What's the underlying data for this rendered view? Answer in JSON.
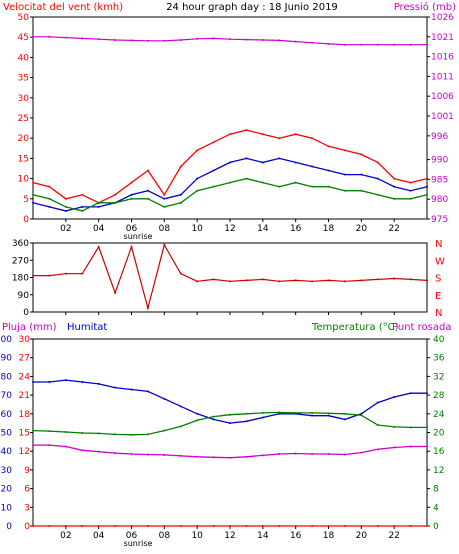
{
  "title": "24 hour graph day : 18 Junio 2019",
  "panels": {
    "wind": {
      "left_label": "Velocitat del vent (kmh)",
      "right_label": "Pressió (mb)",
      "colors": {
        "speed": "#ff0000",
        "avg": "#0000cc",
        "gust": "#008000",
        "pressure": "#cc00cc"
      }
    },
    "dir": {
      "compass": [
        "N",
        "W",
        "S",
        "E",
        "N"
      ],
      "colors": {
        "dir": "#cc0000"
      }
    },
    "temp": {
      "rain_label": "Pluja (mm)",
      "hum_label": "Humitat",
      "temp_label": "Temperatura (°C)",
      "dew_label": "Punt rosada",
      "colors": {
        "rain": "#ff0000",
        "hum": "#0000cc",
        "temp": "#008000",
        "dew": "#cc00cc"
      }
    }
  },
  "x_ticks": [
    "02",
    "04",
    "06",
    "08",
    "10",
    "12",
    "14",
    "16",
    "18",
    "20",
    "22"
  ],
  "sunrise_label": "sunrise",
  "chart_data": [
    {
      "type": "line",
      "title": "24 hour graph day : 18 Junio 2019",
      "ylabel": "Velocitat del vent (kmh)",
      "y2label": "Pressió (mb)",
      "ylim": [
        0,
        50
      ],
      "y2lim": [
        975,
        1026
      ],
      "yticks": [
        0,
        5,
        10,
        15,
        20,
        25,
        30,
        35,
        40,
        45,
        50
      ],
      "y2ticks": [
        975,
        980,
        985,
        990,
        996,
        1001,
        1006,
        1011,
        1016,
        1021,
        1026
      ],
      "x": [
        0,
        1,
        2,
        3,
        4,
        5,
        6,
        7,
        8,
        9,
        10,
        11,
        12,
        13,
        14,
        15,
        16,
        17,
        18,
        19,
        20,
        21,
        22,
        23,
        24
      ],
      "series": [
        {
          "values": [
            9,
            8,
            5,
            6,
            4,
            6,
            9,
            12,
            6,
            13,
            17,
            19,
            21,
            22,
            21,
            20,
            21,
            20,
            18,
            17,
            16,
            14,
            10,
            9,
            10
          ]
        },
        {
          "values": [
            4,
            3,
            2,
            3,
            3,
            4,
            6,
            7,
            5,
            6,
            10,
            12,
            14,
            15,
            14,
            15,
            14,
            13,
            12,
            11,
            11,
            10,
            8,
            7,
            8
          ]
        },
        {
          "values": [
            6,
            5,
            3,
            2,
            4,
            4,
            5,
            5,
            3,
            4,
            7,
            8,
            9,
            10,
            9,
            8,
            9,
            8,
            8,
            7,
            7,
            6,
            5,
            5,
            6
          ]
        },
        {
          "values": [
            1021,
            1021,
            1020.8,
            1020.6,
            1020.4,
            1020.2,
            1020.1,
            1020,
            1020,
            1020.2,
            1020.5,
            1020.6,
            1020.4,
            1020.3,
            1020.2,
            1020.1,
            1019.8,
            1019.5,
            1019.2,
            1019,
            1019,
            1019,
            1019,
            1019,
            1019
          ]
        }
      ]
    },
    {
      "type": "line",
      "ylim": [
        0,
        360
      ],
      "yticks": [
        0,
        90,
        180,
        270,
        360
      ],
      "x": [
        0,
        1,
        2,
        3,
        4,
        5,
        6,
        7,
        8,
        9,
        10,
        11,
        12,
        13,
        14,
        15,
        16,
        17,
        18,
        19,
        20,
        21,
        22,
        23,
        24
      ],
      "series": [
        {
          "values": [
            190,
            190,
            200,
            200,
            340,
            100,
            340,
            20,
            350,
            200,
            160,
            170,
            160,
            165,
            170,
            160,
            165,
            160,
            165,
            160,
            165,
            170,
            175,
            170,
            165
          ]
        }
      ]
    },
    {
      "type": "line",
      "ylabel": "Humitat",
      "y2label": "Temperatura (°C)",
      "ylim": [
        0,
        100
      ],
      "y2lim": [
        0,
        40
      ],
      "yticks": [
        0,
        10,
        20,
        30,
        40,
        50,
        60,
        70,
        80,
        90,
        100
      ],
      "y2ticks": [
        0,
        4,
        8,
        12,
        16,
        20,
        24,
        28,
        32,
        36,
        40
      ],
      "rain_ticks": [
        0,
        3,
        6,
        9,
        12,
        15,
        18,
        21,
        24,
        27,
        30
      ],
      "x": [
        0,
        1,
        2,
        3,
        4,
        5,
        6,
        7,
        8,
        9,
        10,
        11,
        12,
        13,
        14,
        15,
        16,
        17,
        18,
        19,
        20,
        21,
        22,
        23,
        24
      ],
      "series": [
        {
          "values": [
            0,
            0,
            0,
            0,
            0,
            0,
            0,
            0,
            0,
            0,
            0,
            0,
            0,
            0,
            0,
            0,
            0,
            0,
            0,
            0,
            0,
            0,
            0,
            0,
            0
          ]
        },
        {
          "values": [
            77,
            77,
            78,
            77,
            76,
            74,
            73,
            72,
            68,
            64,
            60,
            57,
            55,
            56,
            58,
            60,
            60,
            59,
            59,
            57,
            60,
            66,
            69,
            71,
            71
          ]
        },
        {
          "values": [
            20.4,
            20.3,
            20.1,
            19.9,
            19.8,
            19.6,
            19.5,
            19.6,
            20.4,
            21.3,
            22.6,
            23.4,
            23.8,
            24,
            24.2,
            24.3,
            24.2,
            24.2,
            24.1,
            24,
            23.7,
            21.6,
            21.2,
            21.1,
            21.1
          ]
        },
        {
          "values": [
            17.3,
            17.3,
            17.0,
            16.2,
            15.9,
            15.6,
            15.4,
            15.3,
            15.2,
            15.0,
            14.8,
            14.7,
            14.6,
            14.8,
            15.1,
            15.4,
            15.5,
            15.4,
            15.4,
            15.3,
            15.7,
            16.4,
            16.8,
            17.0,
            17.0
          ]
        }
      ]
    }
  ]
}
